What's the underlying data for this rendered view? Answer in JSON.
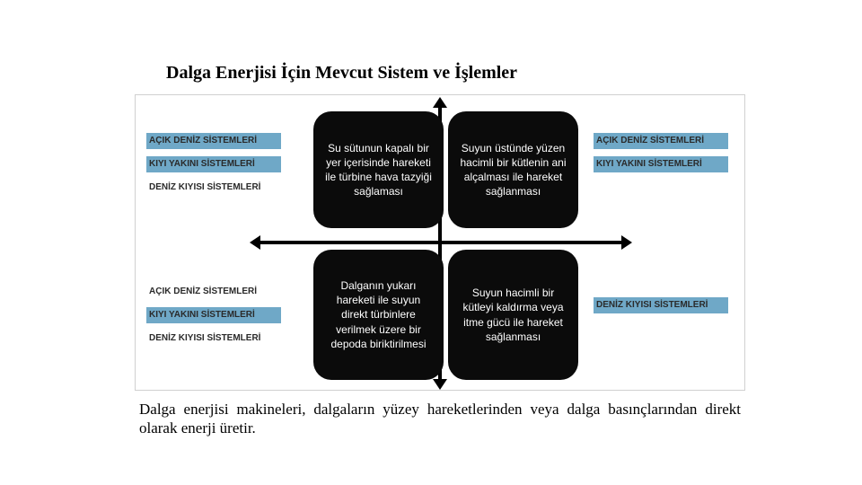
{
  "title": "Dalga Enerjisi İçin Mevcut Sistem ve İşlemler",
  "caption": "Dalga enerjisi makineleri, dalgaların yüzey hareketlerinden veya dalga basınçlarından direkt olarak enerji üretir.",
  "colors": {
    "text": "#000000",
    "tag_bg": "#6fa8c7",
    "tag_text": "#2a2a2a",
    "bubble_bg": "#0b0b0b",
    "bubble_text": "#ffffff",
    "frame_border": "#d0d0d0",
    "background": "#ffffff",
    "axis": "#000000"
  },
  "diagram": {
    "type": "infographic",
    "quadrants": {
      "top_left": {
        "bubble": "Su sütunun kapalı bir yer içerisinde hareketi ile türbine hava tazyiği sağlaması",
        "labels": [
          {
            "text": "AÇIK DENİZ SİSTEMLERİ",
            "bg": "#6fa8c7"
          },
          {
            "text": "KIYI YAKINI SİSTEMLERİ",
            "bg": "#6fa8c7"
          },
          {
            "text": "DENİZ KIYISI SİSTEMLERİ",
            "bg": "#ffffff"
          }
        ]
      },
      "top_right": {
        "bubble": "Suyun üstünde yüzen hacimli bir kütlenin ani alçalması ile hareket sağlanması",
        "labels": [
          {
            "text": "AÇIK DENİZ SİSTEMLERİ",
            "bg": "#6fa8c7"
          },
          {
            "text": "KIYI YAKINI SİSTEMLERİ",
            "bg": "#6fa8c7"
          }
        ]
      },
      "bottom_left": {
        "bubble": "Dalganın yukarı hareketi ile suyun direkt türbinlere verilmek üzere bir depoda biriktirilmesi",
        "labels": [
          {
            "text": "AÇIK DENİZ SİSTEMLERİ",
            "bg": "#ffffff"
          },
          {
            "text": "KIYI YAKINI SİSTEMLERİ",
            "bg": "#6fa8c7"
          },
          {
            "text": "DENİZ KIYISI SİSTEMLERİ",
            "bg": "#ffffff"
          }
        ]
      },
      "bottom_right": {
        "bubble": "Suyun hacimli bir kütleyi kaldırma veya itme gücü ile hareket sağlanması",
        "labels": [
          {
            "text": "DENİZ KIYISI SİSTEMLERİ",
            "bg": "#6fa8c7"
          }
        ]
      }
    },
    "style": {
      "bubble_radius": 20,
      "bubble_font_size": 12,
      "label_font_size": 10,
      "title_font_size": 20,
      "caption_font_size": 17,
      "axis_width": 4
    }
  }
}
